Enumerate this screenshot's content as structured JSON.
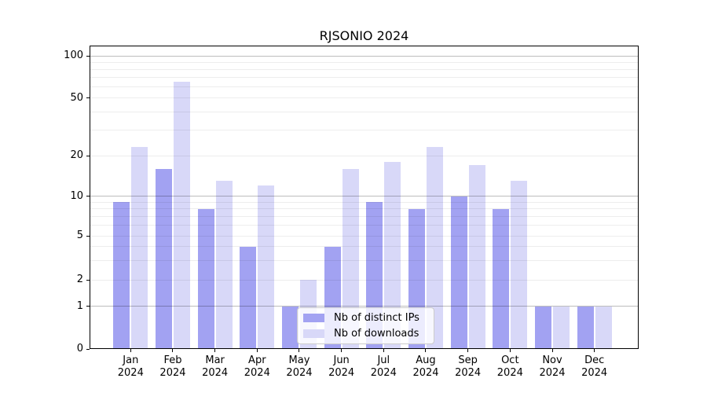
{
  "chart_data": {
    "type": "bar",
    "title": "RJSONIO 2024",
    "categories": [
      "Jan",
      "Feb",
      "Mar",
      "Apr",
      "May",
      "Jun",
      "Jul",
      "Aug",
      "Sep",
      "Oct",
      "Nov",
      "Dec"
    ],
    "category_year_line": "2024",
    "y_ticks": [
      0,
      1,
      2,
      5,
      10,
      20,
      50,
      100
    ],
    "y_axis_scale": "log-like (0,1,2,5,10,20,50,100)",
    "grid": "horizontal, minor log gridlines faint, major lines at 1/10/100",
    "legend_position": "lower center, inside plot",
    "series": [
      {
        "name": "Nb of distinct IPs",
        "color": "#a2a2f2",
        "values": [
          9,
          16,
          8,
          4,
          1,
          4,
          9,
          8,
          10,
          8,
          1,
          1
        ]
      },
      {
        "name": "Nb of downloads",
        "color": "#d8d8f8",
        "values": [
          23,
          65,
          13,
          12,
          2,
          16,
          18,
          23,
          17,
          13,
          1,
          1
        ]
      }
    ]
  },
  "colors": {
    "distinct_ips_bar": "#a2a2f2",
    "downloads_bar": "#d8d8f8",
    "major_gridline": "#b5b5b5",
    "minor_gridline": "#e9e9e9",
    "axis": "#000000",
    "legend_border": "#cccccc"
  },
  "legend": {
    "items": [
      {
        "label": "Nb of distinct IPs",
        "series_index": 0
      },
      {
        "label": "Nb of downloads",
        "series_index": 1
      }
    ]
  }
}
